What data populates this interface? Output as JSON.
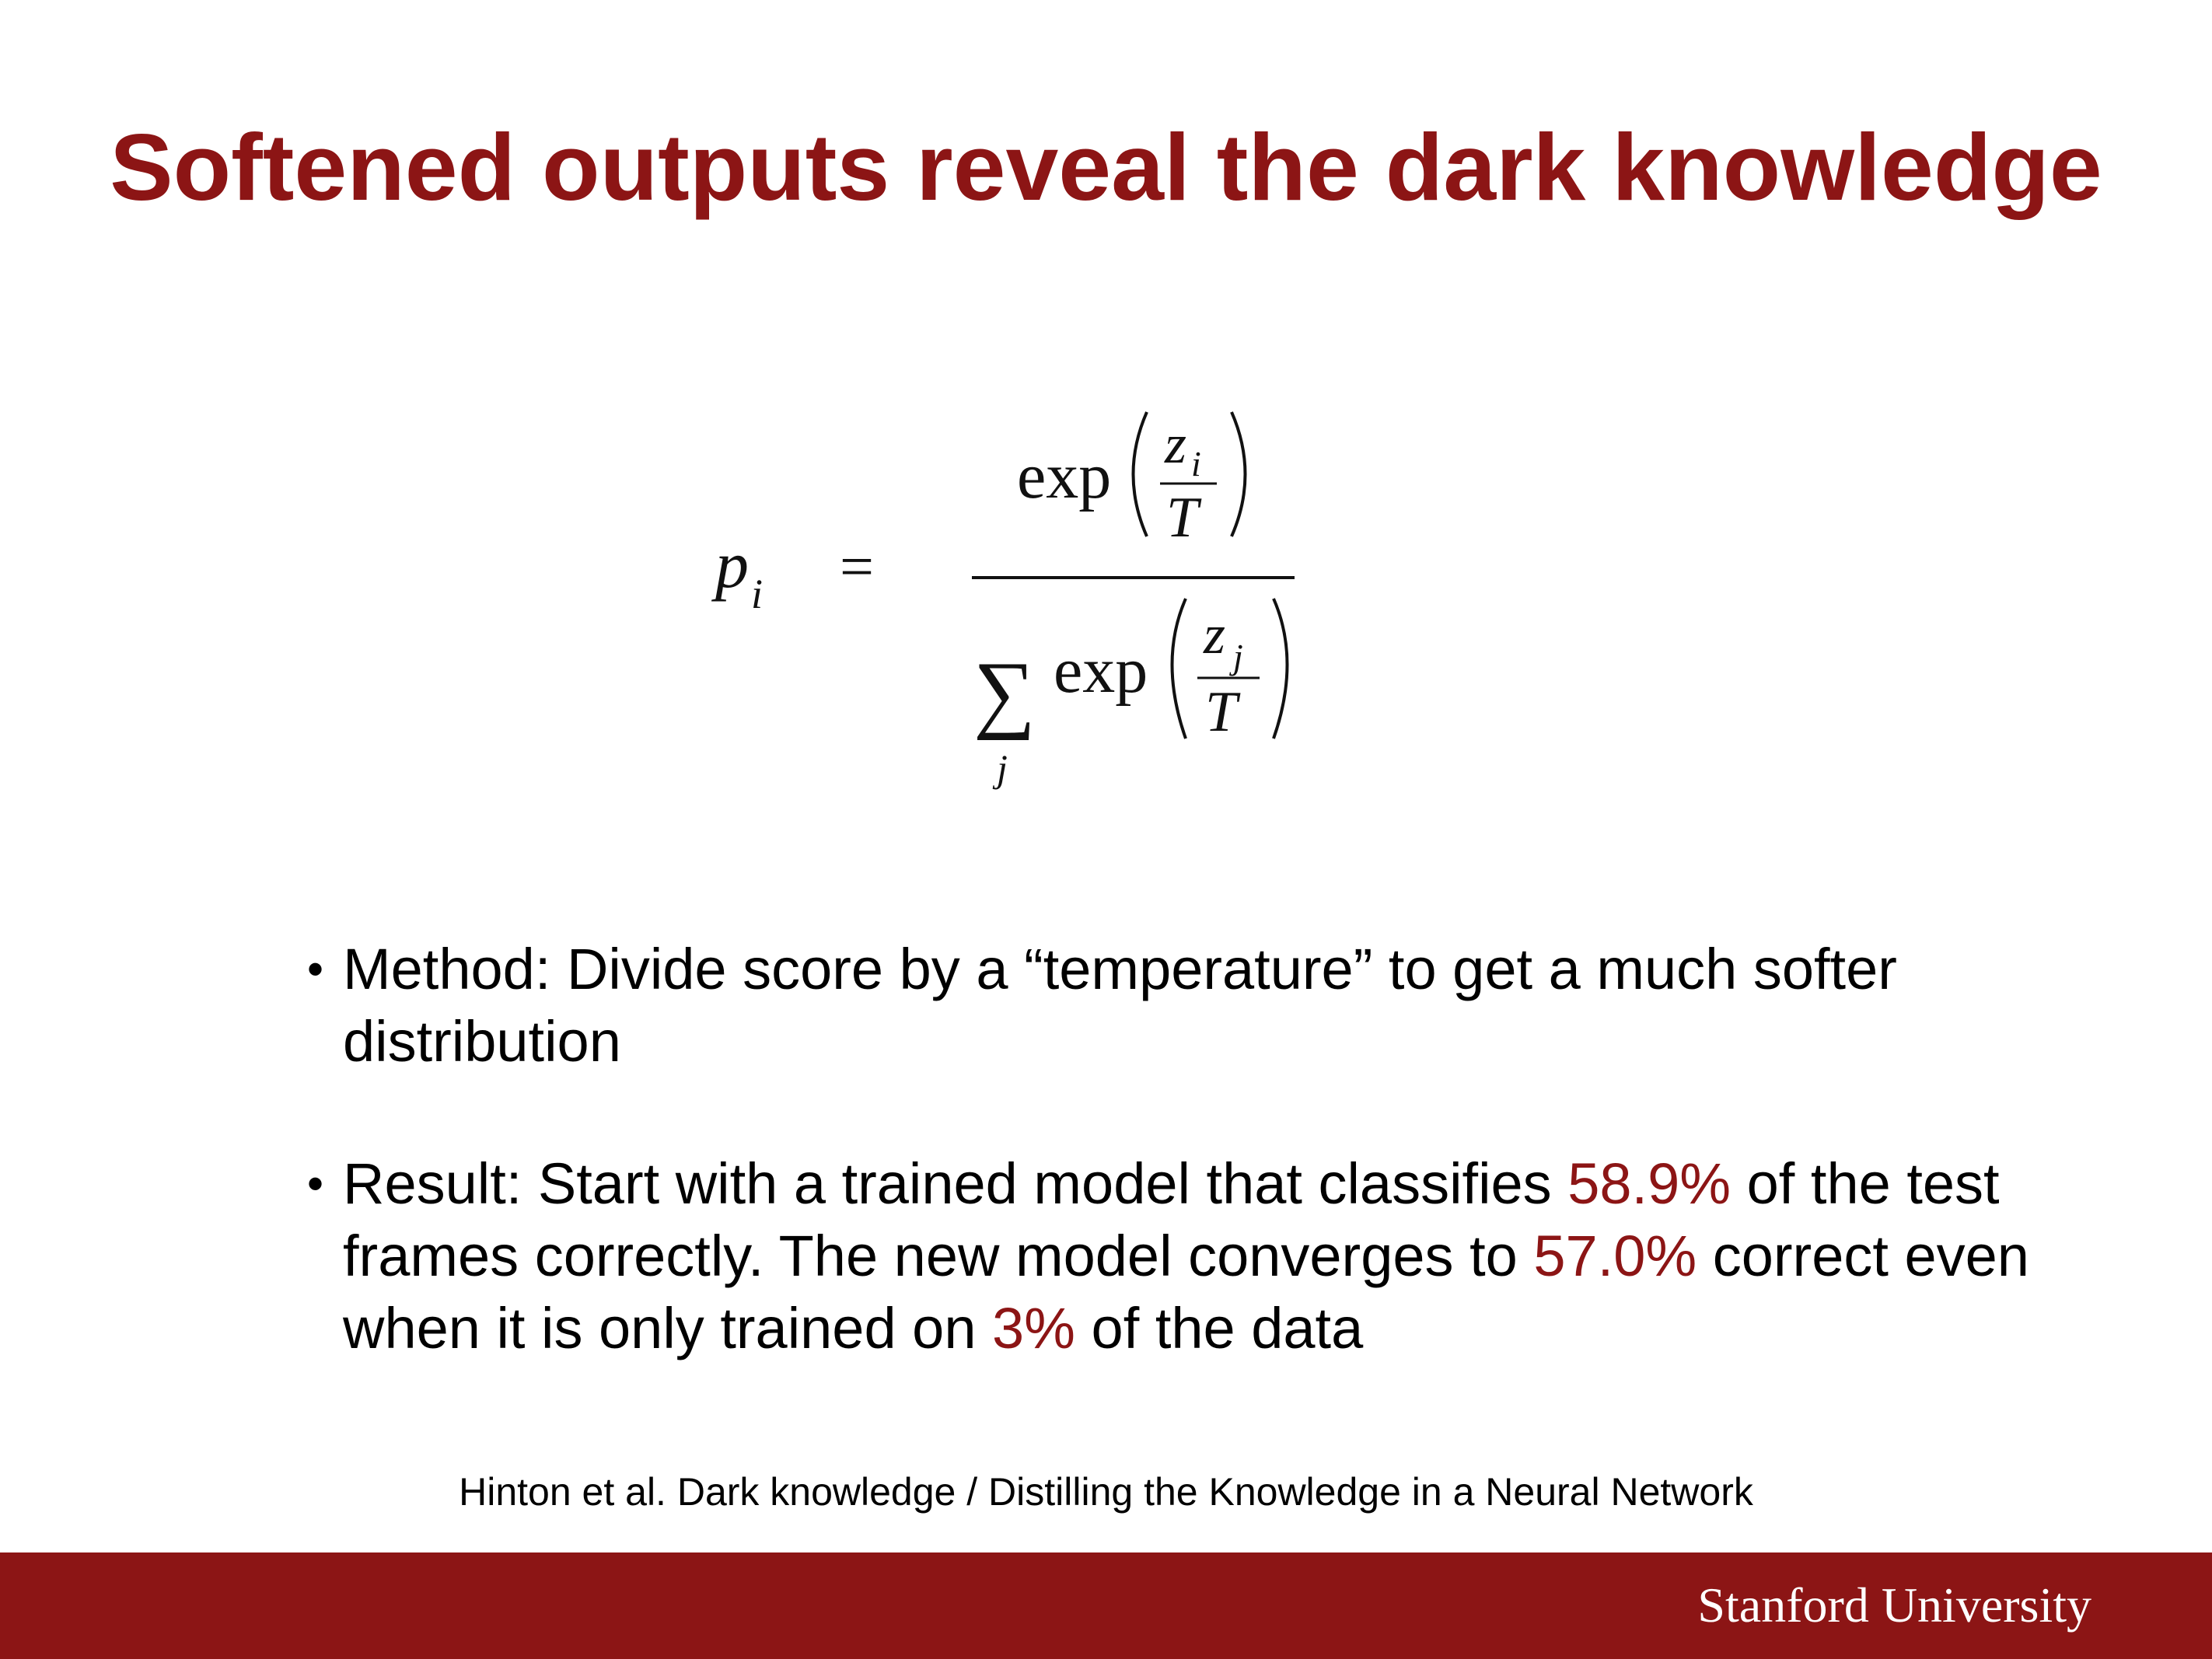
{
  "slide": {
    "title": "Softened outputs reveal the dark knowledge",
    "formula": {
      "lhs_base": "p",
      "lhs_sub": "i",
      "equals": "=",
      "exp": "exp",
      "num_z": "z",
      "num_z_sub": "i",
      "den_T": "T",
      "sum_symbol": "∑",
      "sum_index": "j",
      "den_z": "z",
      "den_z_sub": "j"
    },
    "bullets": [
      {
        "marker": "•",
        "parts": [
          "Method: Divide score by a “temperature” to get a much softer distribution"
        ]
      },
      {
        "marker": "•",
        "text_1": "Result: Start with a trained model that classifies ",
        "value_1": "58.9%",
        "text_2": " of the test frames correctly. The new model converges to ",
        "value_2": "57.0%",
        "text_3": " correct even when it is only trained on ",
        "value_3": "3%",
        "text_4": " of the data"
      }
    ],
    "citation": "Hinton et al. Dark knowledge / Distilling the Knowledge in a Neural Network",
    "footer_brand": "Stanford University",
    "colors": {
      "accent": "#8c1515",
      "text": "#000000",
      "background": "#ffffff"
    }
  }
}
